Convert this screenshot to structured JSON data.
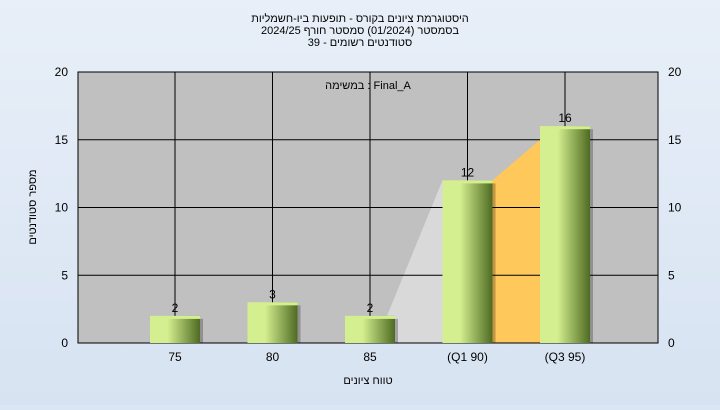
{
  "chart_data": {
    "type": "bar",
    "title_lines": [
      "היסטוגרמת ציונים בקורס - תופעות ביו-חשמליות",
      "בסמסטר  (01/2024)  סמסטר חורף 2024/25",
      "סטודנטים רשומים - 39"
    ],
    "annotation": "במשימה : Final_A",
    "xlabel": "טווח ציונים",
    "ylabel": "מספר סטודנטים",
    "categories": [
      "75",
      "80",
      "85",
      "(Q1 90)",
      "(Q3 95)"
    ],
    "values": [
      2,
      3,
      2,
      12,
      16
    ],
    "ylim": [
      0,
      20
    ],
    "yticks": [
      0,
      5,
      10,
      15,
      20
    ],
    "grid": true,
    "colors": {
      "plot_bg": "#c0c0c0",
      "bar_light": "#d4ef8f",
      "bar_dark": "#4e6b22",
      "band_gray": "#d9d9d9",
      "band_orange": "#ffc85a"
    }
  }
}
